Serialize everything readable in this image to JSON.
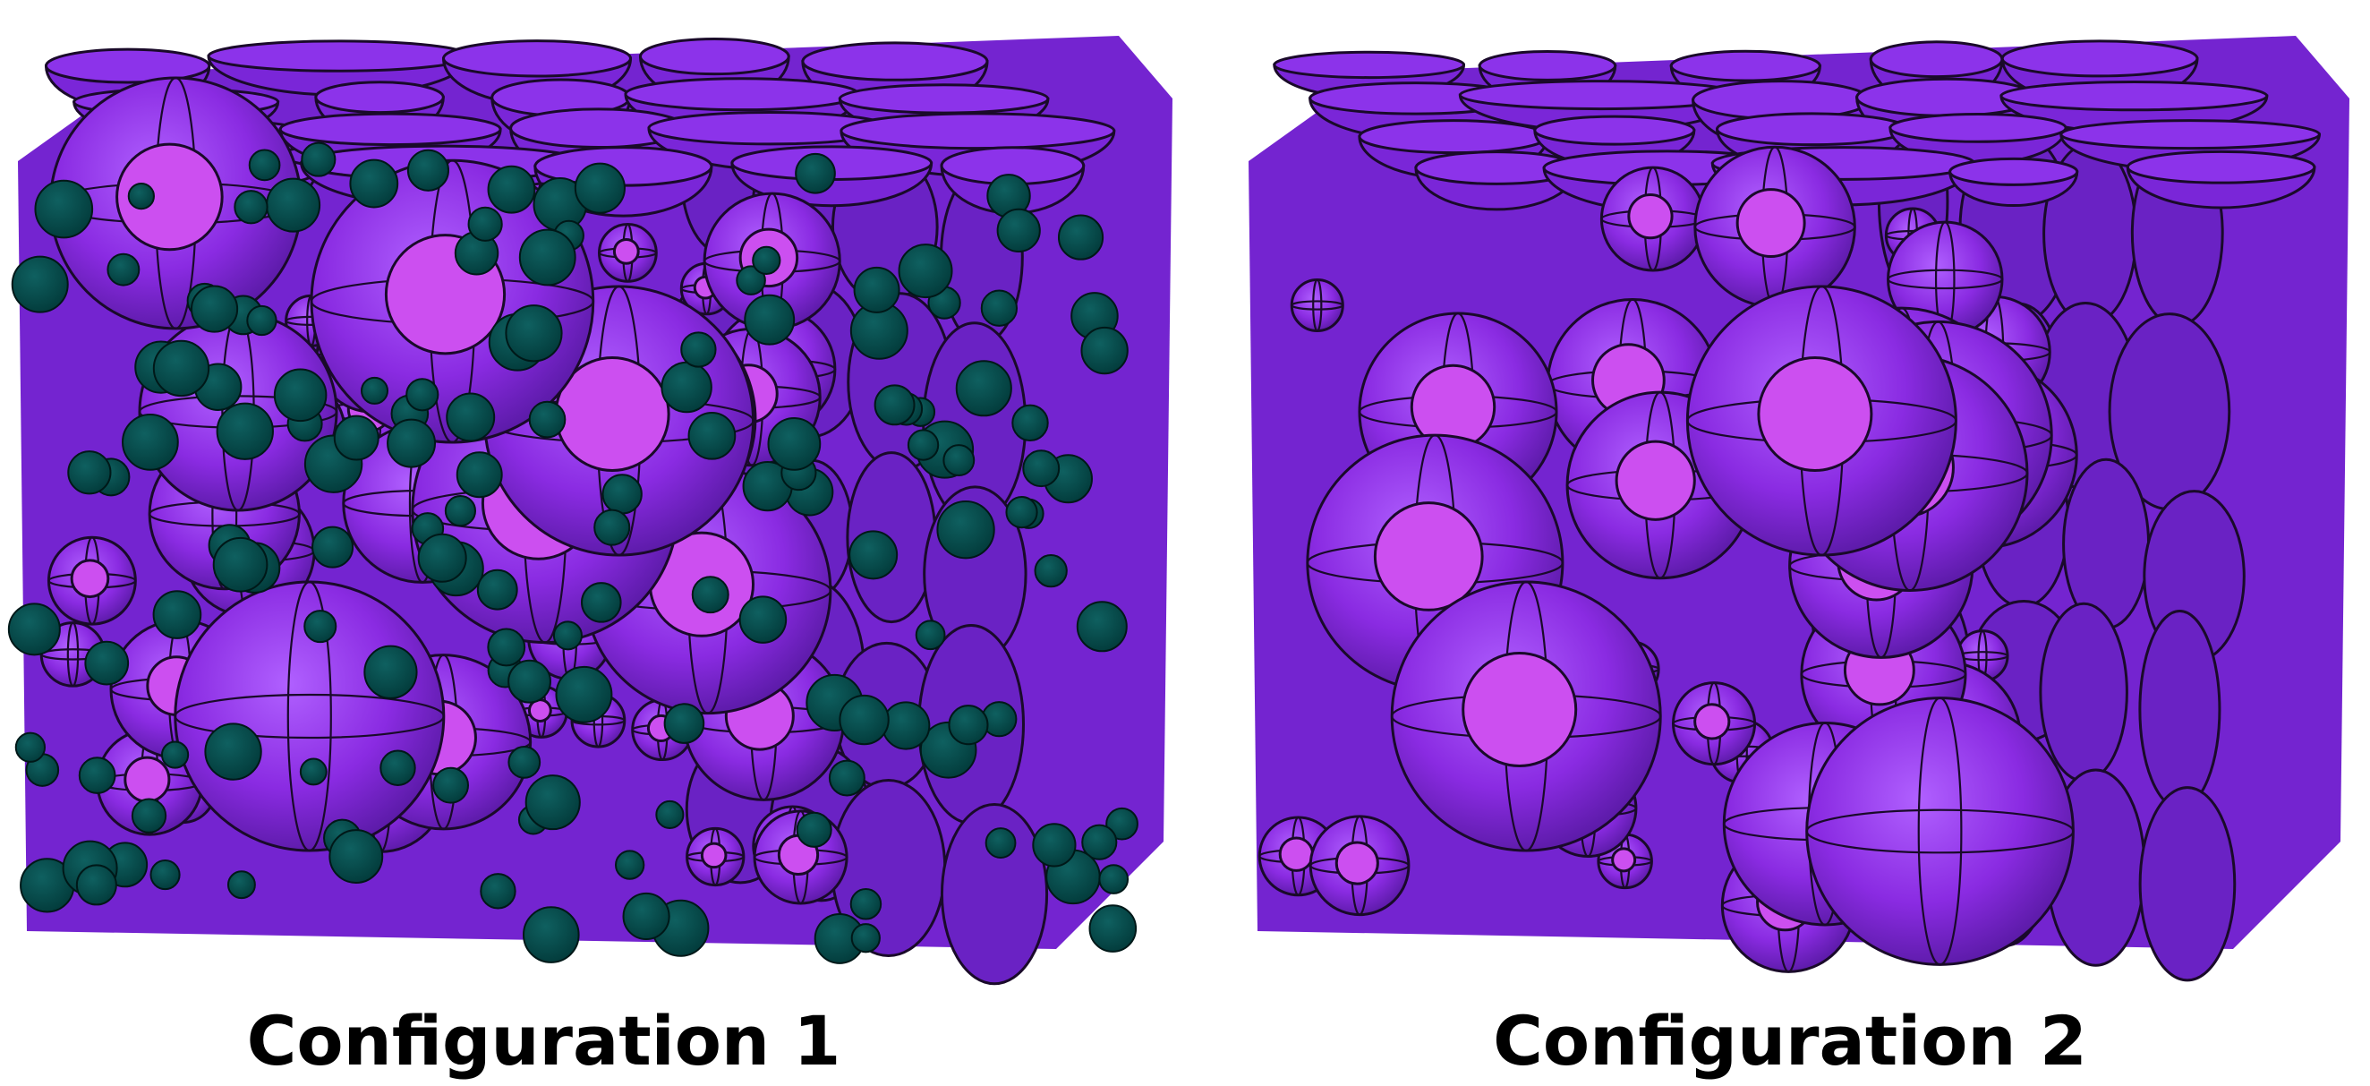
{
  "panels": [
    {
      "caption": "Configuration 1",
      "has_secondary_particles": true
    },
    {
      "caption": "Configuration 2",
      "has_secondary_particles": false
    }
  ],
  "colors": {
    "particle_body": "#8a2be2",
    "particle_shade": "#5a1aa6",
    "particle_cut_face": "#cc4ff0",
    "cut_side_face": "#6a22c4",
    "secondary_particle": "#033d3d",
    "outline": "#1a0a2a",
    "caption_text": "#000000"
  }
}
